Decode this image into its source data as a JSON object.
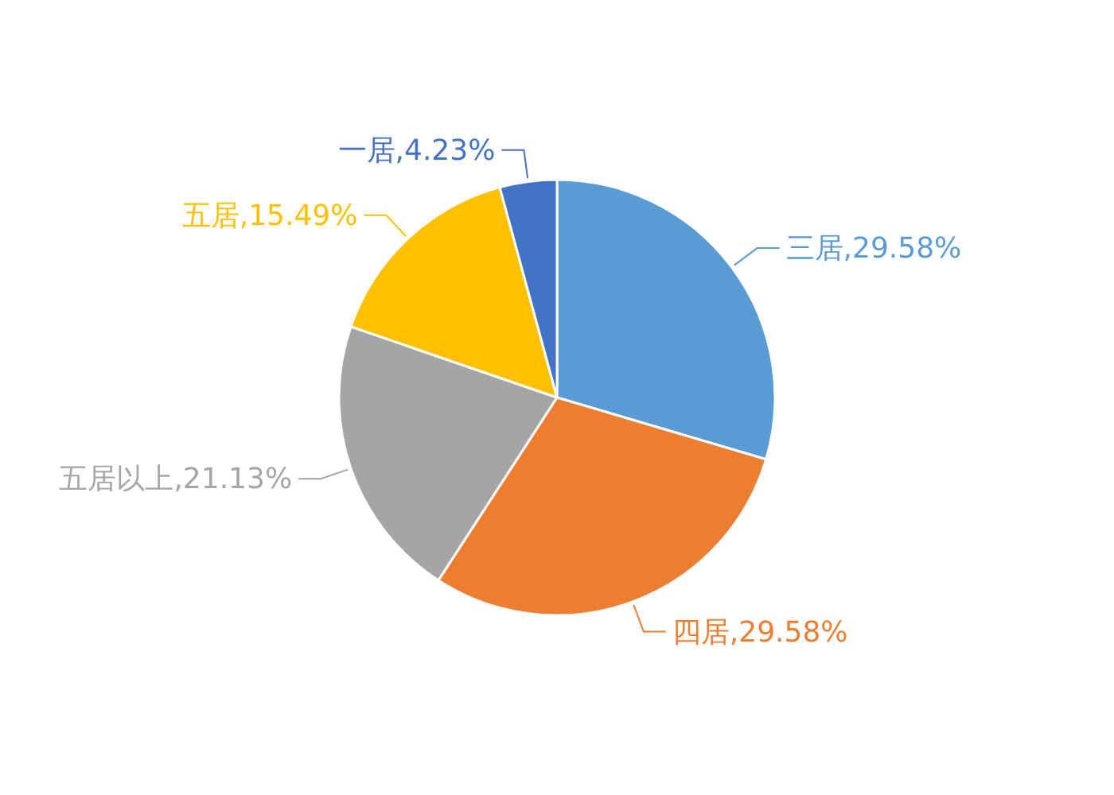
{
  "chart_data": {
    "type": "pie",
    "categories": [
      "三居",
      "四居",
      "五居以上",
      "五居",
      "一居"
    ],
    "values": [
      29.58,
      29.58,
      21.13,
      15.49,
      4.23
    ],
    "colors": [
      "#5b9bd5",
      "#ed7d31",
      "#a5a5a5",
      "#ffc000",
      "#4472c4"
    ],
    "value_labels": [
      "29.58%",
      "29.58%",
      "21.13%",
      "15.49%",
      "4.23%"
    ]
  }
}
